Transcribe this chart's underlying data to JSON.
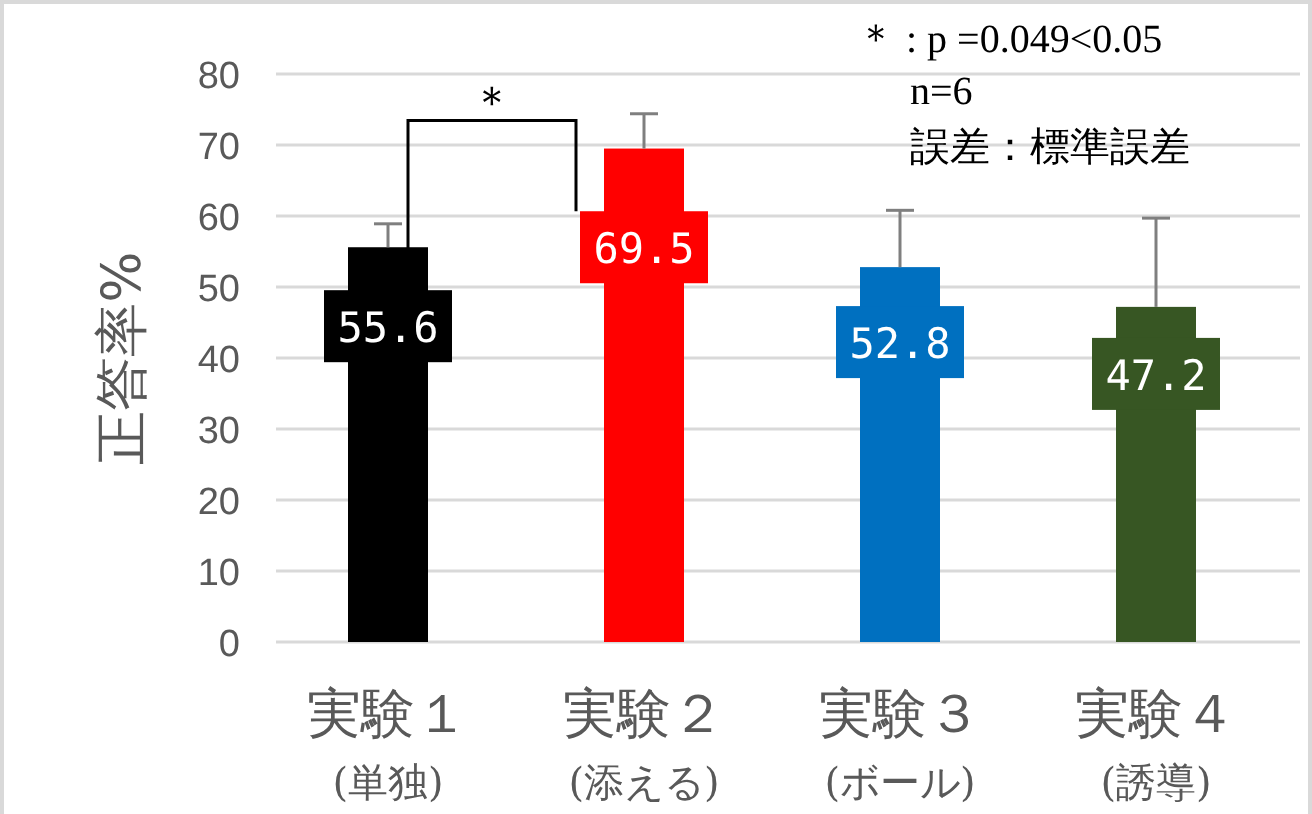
{
  "chart_data": {
    "type": "bar",
    "ylabel": "正答率%",
    "categories": [
      "実験１\n(単独)",
      "実験２\n(添える)",
      "実験３\n(ボール)",
      "実験４\n(誘導)"
    ],
    "values": [
      55.6,
      69.5,
      52.8,
      47.2
    ],
    "colors": [
      "#000000",
      "#ff0000",
      "#0070c0",
      "#375623"
    ],
    "errors": [
      3.3,
      4.9,
      8.0,
      12.5
    ],
    "ylim": [
      0,
      80
    ],
    "yticks": [
      0,
      10,
      20,
      30,
      40,
      50,
      60,
      70,
      80
    ],
    "grid": "y",
    "data_labels": true,
    "annotations": [
      "＊ : p =0.049<0.05",
      "n=6",
      "誤差：標準誤差",
      "＊"
    ]
  }
}
